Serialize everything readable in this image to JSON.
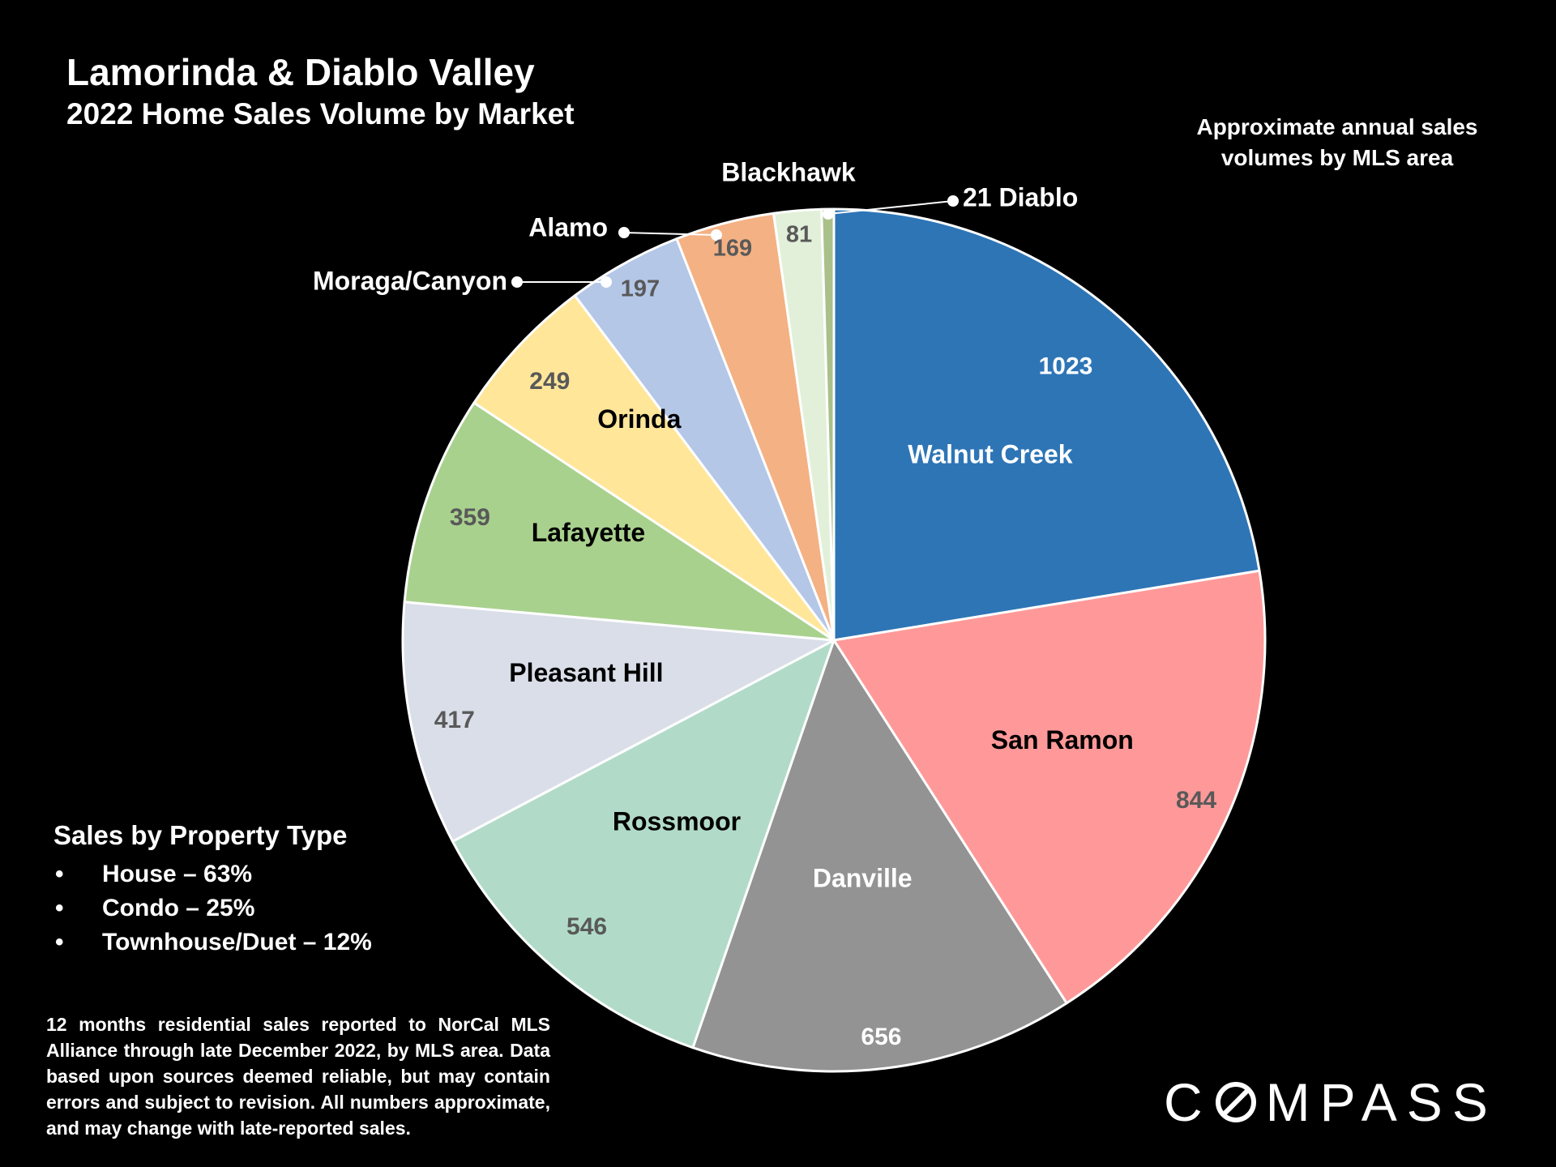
{
  "title": "Lamorinda & Diablo Valley",
  "subtitle": "2022 Home Sales Volume by Market",
  "note": "Approximate annual sales volumes by MLS area",
  "property_type": {
    "heading": "Sales by Property Type",
    "items": [
      "House – 63%",
      "Condo – 25%",
      "Townhouse/Duet – 12%"
    ]
  },
  "footnote": "12 months residential sales reported to NorCal MLS Alliance through late December 2022, by MLS area. Data based upon sources deemed reliable, but may contain errors and subject to revision. All numbers approximate, and may change with late-reported sales.",
  "logo": {
    "text_before": "C",
    "text_after": "MPASS",
    "icon": "compass-o-icon"
  },
  "chart_data": {
    "type": "pie",
    "start": "top, clockwise",
    "slices": [
      {
        "label": "Walnut Creek",
        "value": 1023,
        "color": "#2E75B6",
        "label_color": "#ffffff",
        "value_color": "#ffffff"
      },
      {
        "label": "San Ramon",
        "value": 844,
        "color": "#FF9999",
        "label_color": "#000000",
        "value_color": "#595959"
      },
      {
        "label": "Danville",
        "value": 656,
        "color": "#939393",
        "label_color": "#ffffff",
        "value_color": "#ffffff"
      },
      {
        "label": "Rossmoor",
        "value": 546,
        "color": "#B1DBC8",
        "label_color": "#000000",
        "value_color": "#595959"
      },
      {
        "label": "Pleasant Hill",
        "value": 417,
        "color": "#D9DEE8",
        "label_color": "#000000",
        "value_color": "#595959"
      },
      {
        "label": "Lafayette",
        "value": 359,
        "color": "#A9D18E",
        "label_color": "#000000",
        "value_color": "#595959"
      },
      {
        "label": "Orinda",
        "value": 249,
        "color": "#FFE699",
        "label_color": "#000000",
        "value_color": "#595959"
      },
      {
        "label": "Moraga/Canyon",
        "value": 197,
        "color": "#B4C7E7",
        "label_color": "#ffffff",
        "value_color": "#595959",
        "callout": true
      },
      {
        "label": "Alamo",
        "value": 169,
        "color": "#F4B183",
        "label_color": "#ffffff",
        "value_color": "#595959",
        "callout": true
      },
      {
        "label": "Blackhawk",
        "value": 81,
        "color": "#E2F0D9",
        "label_color": "#ffffff",
        "value_color": "#595959",
        "callout": true
      },
      {
        "label": "Diablo",
        "value": 21,
        "color": "#A9C08A",
        "label_color": "#ffffff",
        "value_color": "#ffffff",
        "callout": true
      }
    ]
  }
}
